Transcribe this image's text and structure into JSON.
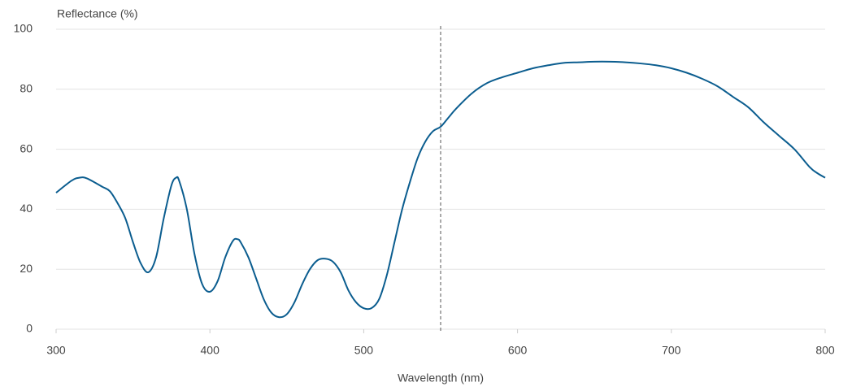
{
  "chart_data": {
    "type": "line",
    "y_axis_title": "Reflectance (%)",
    "x_axis_title": "Wavelength (nm)",
    "x": [
      300,
      310,
      315,
      320,
      330,
      335,
      340,
      345,
      350,
      355,
      360,
      365,
      370,
      375,
      378,
      380,
      385,
      390,
      395,
      400,
      405,
      410,
      415,
      418,
      420,
      425,
      430,
      435,
      440,
      445,
      450,
      455,
      460,
      465,
      470,
      475,
      480,
      485,
      490,
      495,
      500,
      505,
      510,
      515,
      520,
      525,
      530,
      535,
      540,
      545,
      550,
      555,
      560,
      570,
      580,
      590,
      600,
      610,
      620,
      630,
      640,
      650,
      660,
      670,
      680,
      690,
      700,
      710,
      720,
      730,
      740,
      750,
      760,
      770,
      780,
      790,
      795,
      800
    ],
    "series": [
      {
        "color": "#0b5d8f",
        "values": [
          45.5,
          49.5,
          50.5,
          50.3,
          47.5,
          46,
          42,
          37,
          29,
          22,
          19,
          24,
          37,
          48,
          50.5,
          49.5,
          40,
          25,
          15,
          12.5,
          16,
          24,
          29.5,
          30,
          29,
          24,
          17,
          10,
          5.5,
          4,
          5,
          9,
          15,
          20,
          23,
          23.5,
          22.5,
          19,
          13,
          9,
          7,
          7,
          10,
          18,
          29,
          40,
          49,
          57,
          62.5,
          66,
          67.5,
          70.5,
          73.5,
          78.5,
          82,
          84,
          85.5,
          87,
          88,
          88.8,
          89,
          89.2,
          89.2,
          89,
          88.6,
          88,
          87,
          85.5,
          83.5,
          81,
          77.5,
          74,
          69,
          64.5,
          60,
          54,
          52,
          50.5
        ]
      }
    ],
    "xlim": [
      300,
      800
    ],
    "xticks": [
      300,
      400,
      500,
      600,
      700,
      800
    ],
    "ylim": [
      0,
      100
    ],
    "yticks": [
      0,
      20,
      40,
      60,
      80,
      100
    ],
    "reference_line_x": 550,
    "grid": true
  }
}
